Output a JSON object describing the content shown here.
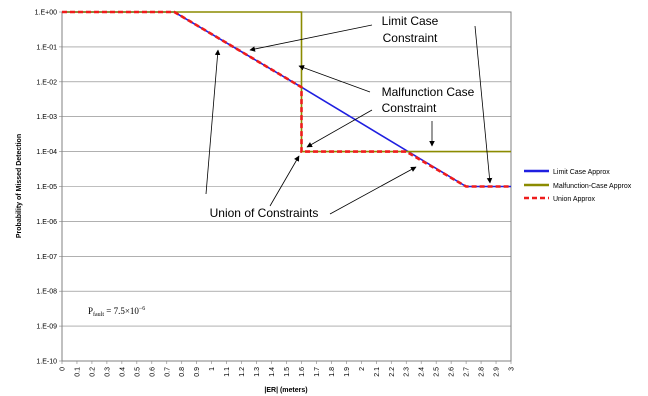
{
  "chart_data": {
    "type": "line",
    "xlabel": "|ER| (meters)",
    "ylabel": "Probability of Missed Detection",
    "xlim": [
      0,
      3
    ],
    "ylim": [
      1e-10,
      1
    ],
    "yscale": "log",
    "grid": true,
    "legend_position": "right",
    "x_ticks": [
      "0",
      "0.1",
      "0.2",
      "0.3",
      "0.4",
      "0.5",
      "0.6",
      "0.7",
      "0.8",
      "0.9",
      "1",
      "1.1",
      "1.2",
      "1.3",
      "1.4",
      "1.5",
      "1.6",
      "1.7",
      "1.8",
      "1.9",
      "2",
      "2.1",
      "2.2",
      "2.3",
      "2.4",
      "2.5",
      "2.6",
      "2.7",
      "2.8",
      "2.9",
      "3"
    ],
    "y_ticks": [
      "1.E+00",
      "1.E-01",
      "1.E-02",
      "1.E-03",
      "1.E-04",
      "1.E-05",
      "1.E-06",
      "1.E-07",
      "1.E-08",
      "1.E-09",
      "1.E-10"
    ],
    "series": [
      {
        "name": "Limit Case Approx",
        "color": "#1f1fe0",
        "dash": "solid",
        "points": [
          [
            0,
            1
          ],
          [
            0.75,
            1
          ],
          [
            1.6,
            0.007
          ],
          [
            2.7,
            1e-05
          ],
          [
            3,
            1e-05
          ]
        ]
      },
      {
        "name": "Malfunction-Case Approx",
        "color": "#8b8b00",
        "dash": "solid",
        "points": [
          [
            0,
            1
          ],
          [
            1.6,
            1
          ],
          [
            1.6,
            0.0001
          ],
          [
            3,
            0.0001
          ]
        ]
      },
      {
        "name": "Union Approx",
        "color": "#ee1c1c",
        "dash": "dashed",
        "points": [
          [
            0,
            1
          ],
          [
            0.75,
            1
          ],
          [
            1.6,
            0.007
          ],
          [
            1.6,
            0.0001
          ],
          [
            2.3,
            0.0001
          ],
          [
            2.7,
            1e-05
          ],
          [
            3,
            1e-05
          ]
        ]
      }
    ],
    "annotations": [
      {
        "id": "limit-case",
        "lines": [
          "Limit Case",
          "Constraint"
        ]
      },
      {
        "id": "malfunction-case",
        "lines": [
          "Malfunction Case",
          "Constraint"
        ]
      },
      {
        "id": "union",
        "lines": [
          "Union of Constraints"
        ]
      }
    ],
    "pfault": {
      "base": "P",
      "sub": "fault",
      "rest": " = 7.5×10",
      "exp": "−6"
    }
  }
}
